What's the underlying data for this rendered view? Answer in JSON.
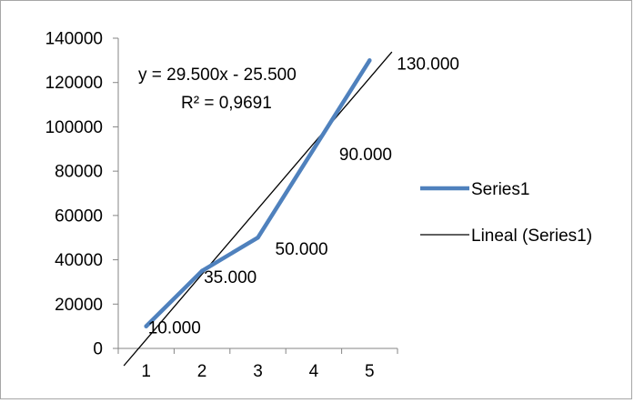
{
  "chart_data": {
    "type": "line",
    "title": "",
    "xlabel": "",
    "ylabel": "",
    "categories": [
      "1",
      "2",
      "3",
      "4",
      "5"
    ],
    "x": [
      1,
      2,
      3,
      4,
      5
    ],
    "ylim": [
      0,
      140000
    ],
    "y_ticks": [
      "0",
      "20000",
      "40000",
      "60000",
      "80000",
      "100000",
      "120000",
      "140000"
    ],
    "y_tick_values": [
      0,
      20000,
      40000,
      60000,
      80000,
      100000,
      120000,
      140000
    ],
    "grid": false,
    "legend_position": "right",
    "series": [
      {
        "name": "Series1",
        "values": [
          10000,
          35000,
          50000,
          90000,
          130000
        ],
        "data_labels": [
          "10.000",
          "35.000",
          "50.000",
          "90.000",
          "130.000"
        ],
        "color": "#4f81bd"
      }
    ],
    "trendline": {
      "name": "Lineal (Series1)",
      "type": "linear",
      "slope": 29500,
      "intercept": -25500,
      "equation": "y = 29.500x - 25.500",
      "r_squared": "R² = 0,9691",
      "color": "#000000"
    }
  }
}
